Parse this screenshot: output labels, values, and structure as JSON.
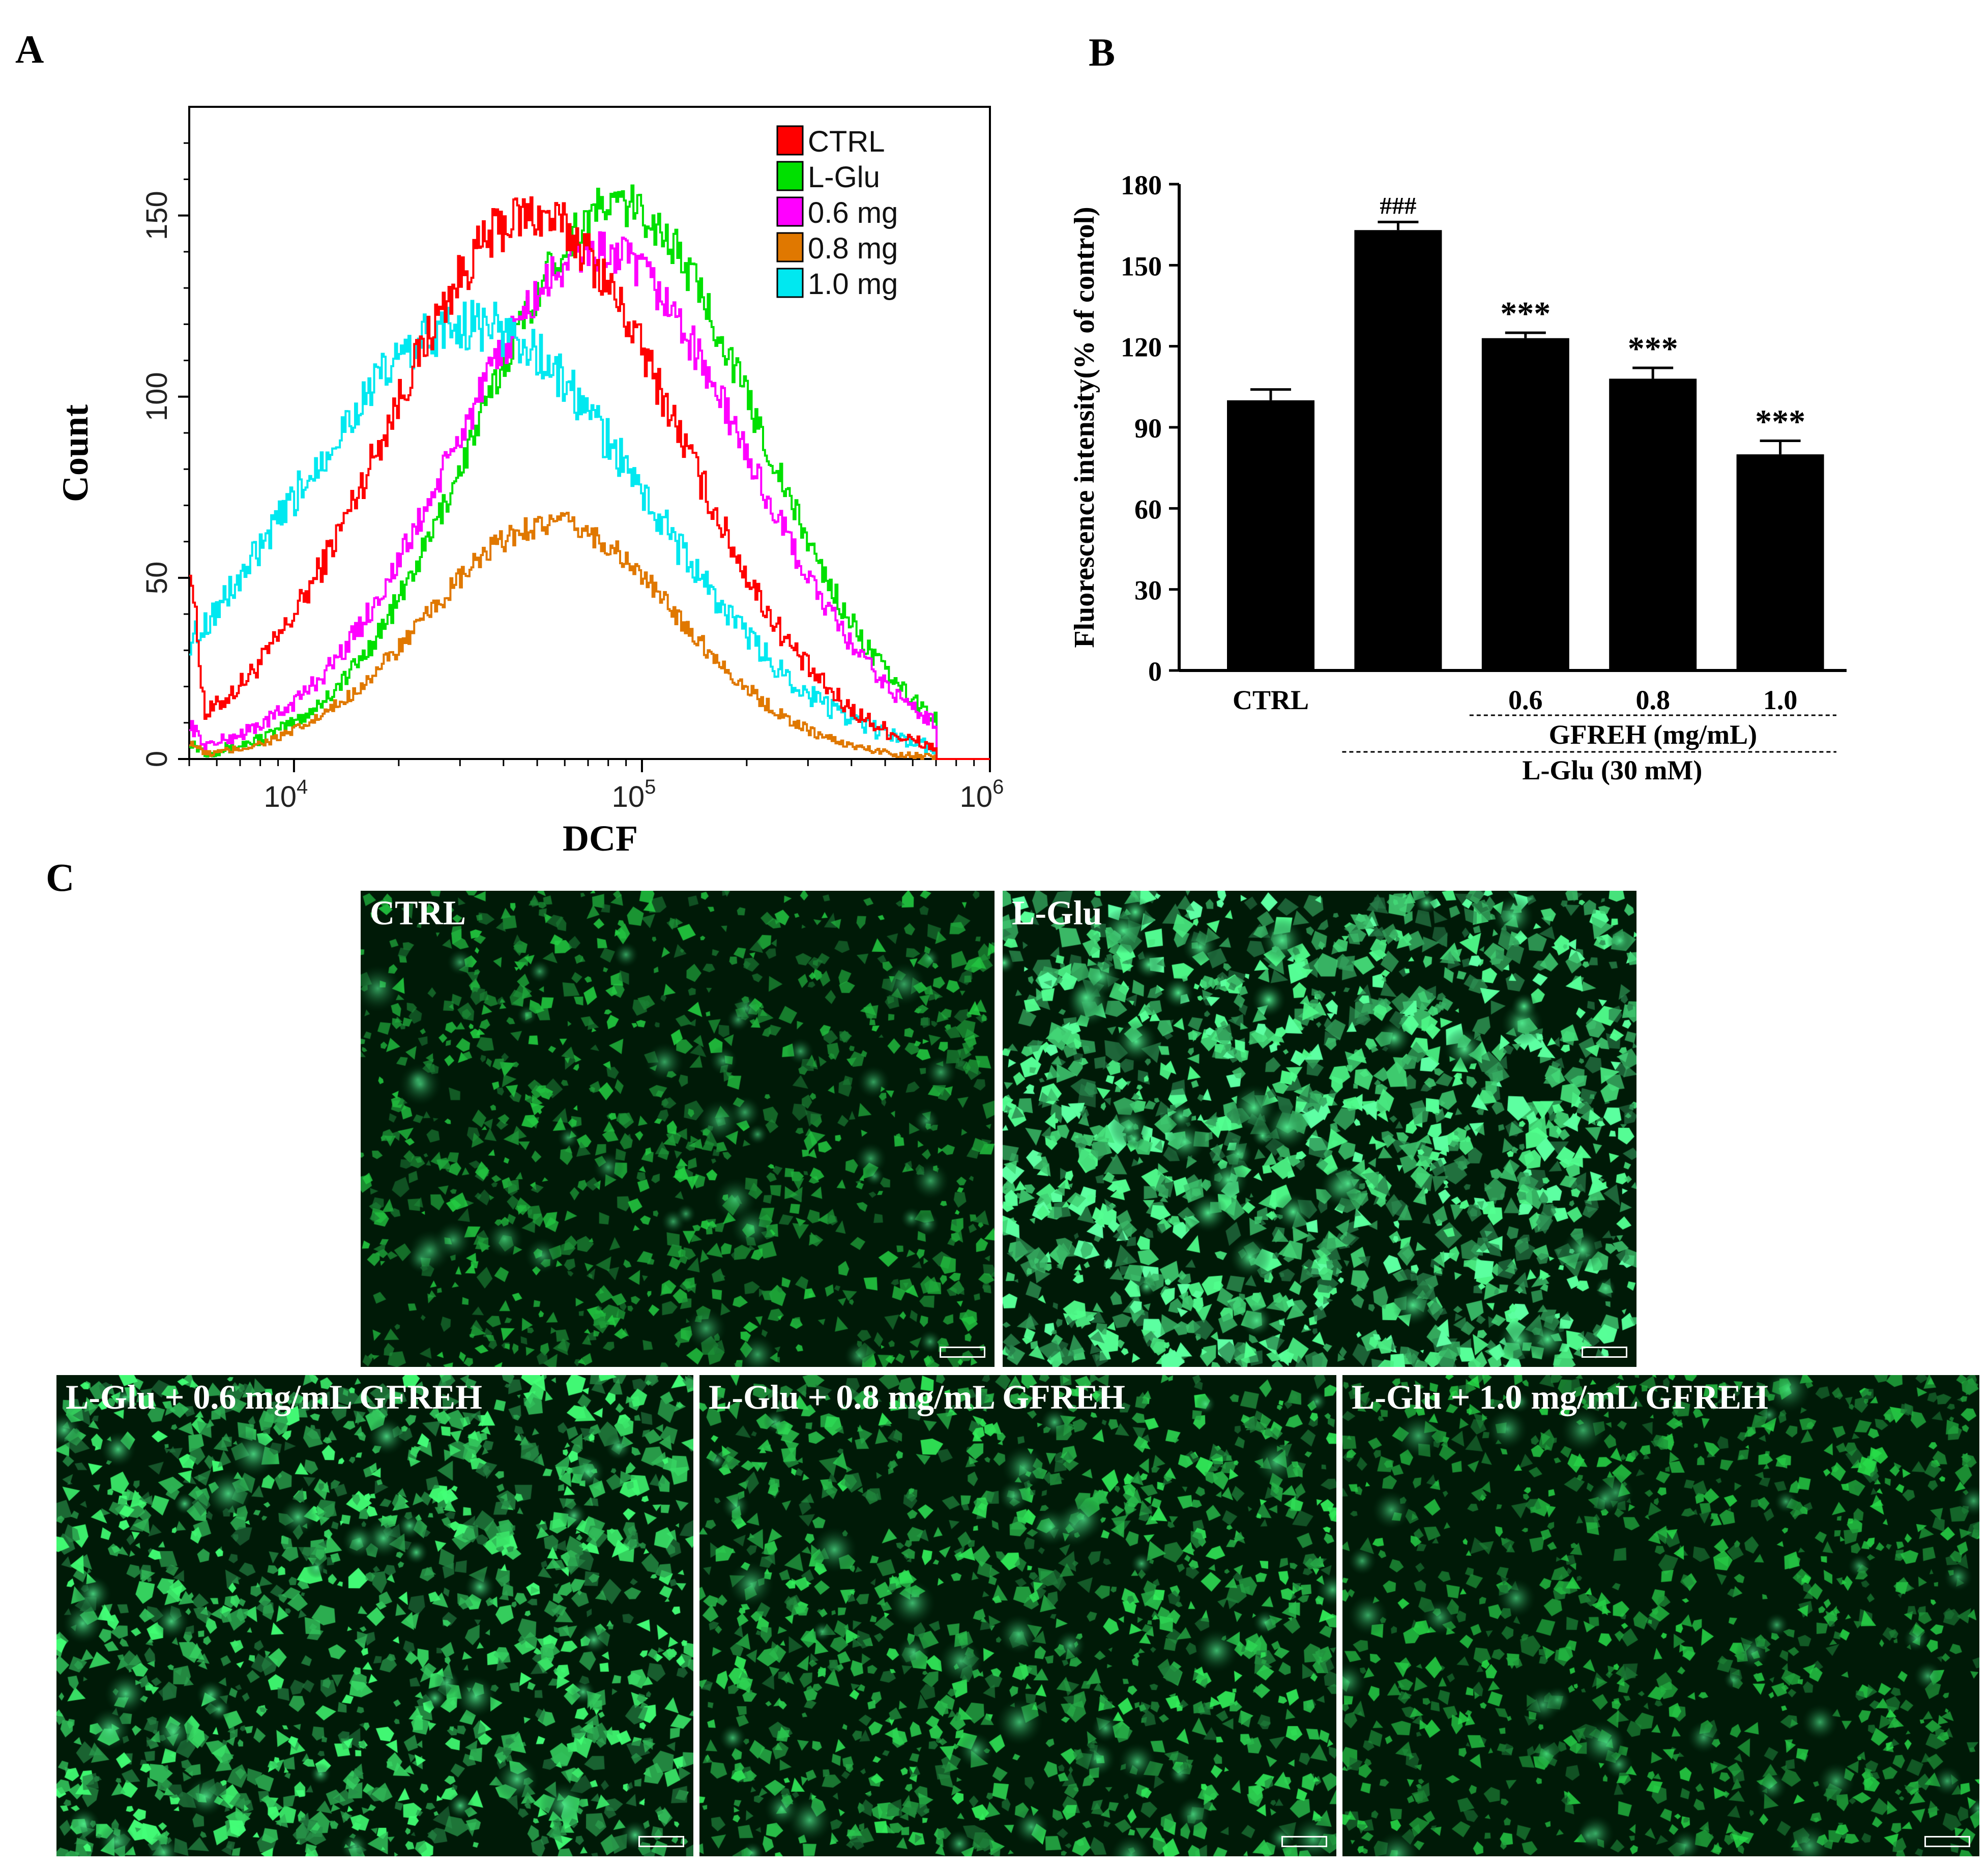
{
  "panels": {
    "a": "A",
    "b": "B",
    "c": "C"
  },
  "chart_data": [
    {
      "type": "line",
      "title": "",
      "xlabel": "DCF",
      "ylabel": "Count",
      "xscale": "log",
      "xlim": [
        5000,
        1000000
      ],
      "ylim": [
        0,
        180
      ],
      "xticks": [
        {
          "value": 10000,
          "base": "10",
          "exp": "4"
        },
        {
          "value": 100000,
          "base": "10",
          "exp": "5"
        },
        {
          "value": 1000000,
          "base": "10",
          "exp": "6"
        }
      ],
      "yticks": [
        0,
        50,
        100,
        150
      ],
      "legend": "top-right",
      "series": [
        {
          "name": "CTRL",
          "color": "#ff0000",
          "peak_x": 48000,
          "peak_y": 150,
          "sigma": 0.42,
          "floor_start": 55,
          "noise": 14
        },
        {
          "name": "L-Glu",
          "color": "#00e000",
          "peak_x": 85000,
          "peak_y": 153,
          "sigma": 0.4,
          "floor_start": 5,
          "noise": 12
        },
        {
          "name": "0.6 mg",
          "color": "#ff00ff",
          "peak_x": 75000,
          "peak_y": 140,
          "sigma": 0.42,
          "floor_start": 10,
          "noise": 12
        },
        {
          "name": "0.8 mg",
          "color": "#e07800",
          "peak_x": 55000,
          "peak_y": 65,
          "sigma": 0.36,
          "floor_start": 5,
          "noise": 7
        },
        {
          "name": "1.0 mg",
          "color": "#00e8f0",
          "peak_x": 32000,
          "peak_y": 120,
          "sigma": 0.5,
          "floor_start": 10,
          "noise": 14
        }
      ]
    },
    {
      "type": "bar",
      "ylabel": "Fluorescence intensity(% of control)",
      "ylim": [
        0,
        180
      ],
      "yticks": [
        0,
        30,
        60,
        90,
        120,
        150,
        180
      ],
      "categories": [
        "CTRL",
        "",
        "0.6",
        "0.8",
        "1.0"
      ],
      "values": [
        100,
        163,
        123,
        108,
        80
      ],
      "errors": [
        4,
        3,
        2,
        4,
        5
      ],
      "annotations": [
        "",
        "###",
        "***",
        "***",
        "***"
      ],
      "group_labels": [
        "GFREH (mg/mL)",
        "L-Glu (30 mM)"
      ],
      "bar_color": "#000000"
    }
  ],
  "micrographs": [
    {
      "label": "CTRL",
      "density": 0.35
    },
    {
      "label": "L-Glu",
      "density": 1.0
    },
    {
      "label": "L-Glu + 0.6 mg/mL GFREH",
      "density": 0.75
    },
    {
      "label": "L-Glu + 0.8 mg/mL GFREH",
      "density": 0.55
    },
    {
      "label": "L-Glu + 1.0 mg/mL GFREH",
      "density": 0.4
    }
  ]
}
